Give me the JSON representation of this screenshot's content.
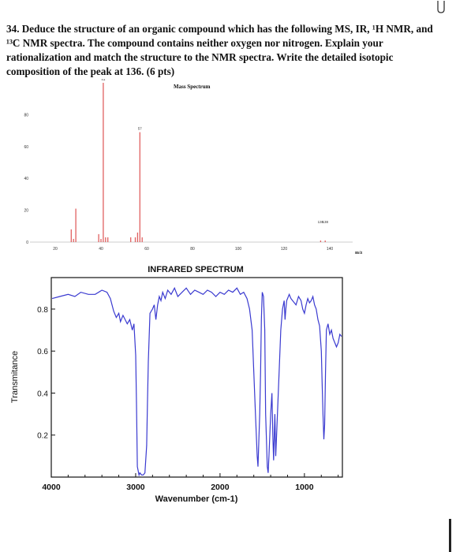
{
  "question": {
    "lines": [
      "34. Deduce the structure of an organic compound which has the following MS, IR, ¹H NMR, and",
      "¹³C NMR spectra. The compound contains neither oxygen nor nitrogen. Explain your",
      "rationalization and match the structure to the NMR spectra. Write the detailed isotopic",
      "composition of the peak at 136. (6 pts)"
    ]
  },
  "chart_data": [
    {
      "type": "bar",
      "title": "Mass Spectrum",
      "xlabel": "m/z",
      "ylabel": "",
      "xlim": [
        10,
        150
      ],
      "ylim": [
        0,
        100
      ],
      "x_ticks": [
        "20",
        "40",
        "60",
        "80",
        "100",
        "120",
        "140"
      ],
      "y_ticks": [
        "0",
        "20",
        "40",
        "60",
        "80"
      ],
      "bar_color": "#e06060",
      "peaks": [
        {
          "mz": 27,
          "value": 8,
          "label": ""
        },
        {
          "mz": 28,
          "value": 2,
          "label": ""
        },
        {
          "mz": 29,
          "value": 21,
          "label": ""
        },
        {
          "mz": 39,
          "value": 5,
          "label": ""
        },
        {
          "mz": 40,
          "value": 2,
          "label": ""
        },
        {
          "mz": 41,
          "value": 100,
          "label": "41"
        },
        {
          "mz": 42,
          "value": 3,
          "label": ""
        },
        {
          "mz": 43,
          "value": 3,
          "label": ""
        },
        {
          "mz": 53,
          "value": 3,
          "label": ""
        },
        {
          "mz": 55,
          "value": 3,
          "label": ""
        },
        {
          "mz": 56,
          "value": 6,
          "label": ""
        },
        {
          "mz": 57,
          "value": 69,
          "label": "57"
        },
        {
          "mz": 58,
          "value": 3,
          "label": ""
        },
        {
          "mz": 136,
          "value": 1,
          "label": "136"
        },
        {
          "mz": 138,
          "value": 1,
          "label": "138"
        }
      ]
    },
    {
      "type": "line",
      "title": "INFRARED SPECTRUM",
      "xlabel": "Wavenumber (cm-1)",
      "ylabel": "Transmitance",
      "xlim": [
        4000,
        550
      ],
      "ylim": [
        0.0,
        0.95
      ],
      "x_ticks": [
        "4000",
        "3000",
        "2000",
        "1000"
      ],
      "y_ticks": [
        "0.2",
        "0.4",
        "0.6",
        "0.8"
      ],
      "line_color": "#3a3ad0",
      "series": [
        {
          "x": [
            3990,
            3900,
            3800,
            3720,
            3650,
            3560,
            3480,
            3400,
            3340,
            3300,
            3260,
            3230,
            3200,
            3180,
            3150,
            3100,
            3070,
            3040,
            3020,
            3000,
            2990,
            2980,
            2960,
            2950,
            2930,
            2910,
            2890,
            2870,
            2860,
            2850,
            2830,
            2800,
            2780,
            2760,
            2740,
            2720,
            2700,
            2680,
            2650,
            2620,
            2580,
            2540,
            2500,
            2450,
            2400,
            2350,
            2300,
            2250,
            2200,
            2150,
            2100,
            2050,
            2000,
            1950,
            1900,
            1850,
            1800,
            1760,
            1720,
            1680,
            1650,
            1620,
            1600,
            1580,
            1560,
            1550,
            1530,
            1520,
            1510,
            1500,
            1485,
            1470,
            1460,
            1440,
            1430,
            1420,
            1400,
            1385,
            1375,
            1365,
            1350,
            1340,
            1330,
            1300,
            1280,
            1260,
            1240,
            1230,
            1220,
            1210,
            1180,
            1160,
            1140,
            1100,
            1070,
            1040,
            1020,
            1000,
            980,
            960,
            940,
            920,
            900,
            880,
            860,
            840,
            820,
            800,
            790,
            780,
            770,
            760,
            750,
            740,
            720,
            700,
            680,
            660,
            640,
            620,
            600,
            580,
            560
          ],
          "y": [
            0.85,
            0.86,
            0.87,
            0.86,
            0.88,
            0.87,
            0.87,
            0.89,
            0.88,
            0.85,
            0.79,
            0.76,
            0.78,
            0.74,
            0.77,
            0.73,
            0.75,
            0.7,
            0.73,
            0.58,
            0.35,
            0.05,
            0.01,
            0.02,
            0.01,
            0.01,
            0.02,
            0.15,
            0.35,
            0.55,
            0.78,
            0.8,
            0.82,
            0.75,
            0.82,
            0.86,
            0.84,
            0.88,
            0.85,
            0.89,
            0.87,
            0.9,
            0.86,
            0.88,
            0.9,
            0.87,
            0.89,
            0.88,
            0.87,
            0.89,
            0.88,
            0.86,
            0.88,
            0.87,
            0.89,
            0.88,
            0.9,
            0.87,
            0.88,
            0.85,
            0.8,
            0.7,
            0.5,
            0.3,
            0.1,
            0.05,
            0.3,
            0.5,
            0.75,
            0.88,
            0.86,
            0.7,
            0.3,
            0.05,
            0.02,
            0.1,
            0.3,
            0.4,
            0.2,
            0.08,
            0.3,
            0.1,
            0.2,
            0.5,
            0.7,
            0.8,
            0.84,
            0.75,
            0.8,
            0.84,
            0.87,
            0.85,
            0.84,
            0.82,
            0.86,
            0.84,
            0.8,
            0.78,
            0.82,
            0.85,
            0.83,
            0.84,
            0.86,
            0.82,
            0.8,
            0.75,
            0.72,
            0.6,
            0.45,
            0.3,
            0.18,
            0.25,
            0.5,
            0.7,
            0.73,
            0.68,
            0.7,
            0.66,
            0.64,
            0.62,
            0.64,
            0.68,
            0.67
          ]
        }
      ]
    }
  ]
}
